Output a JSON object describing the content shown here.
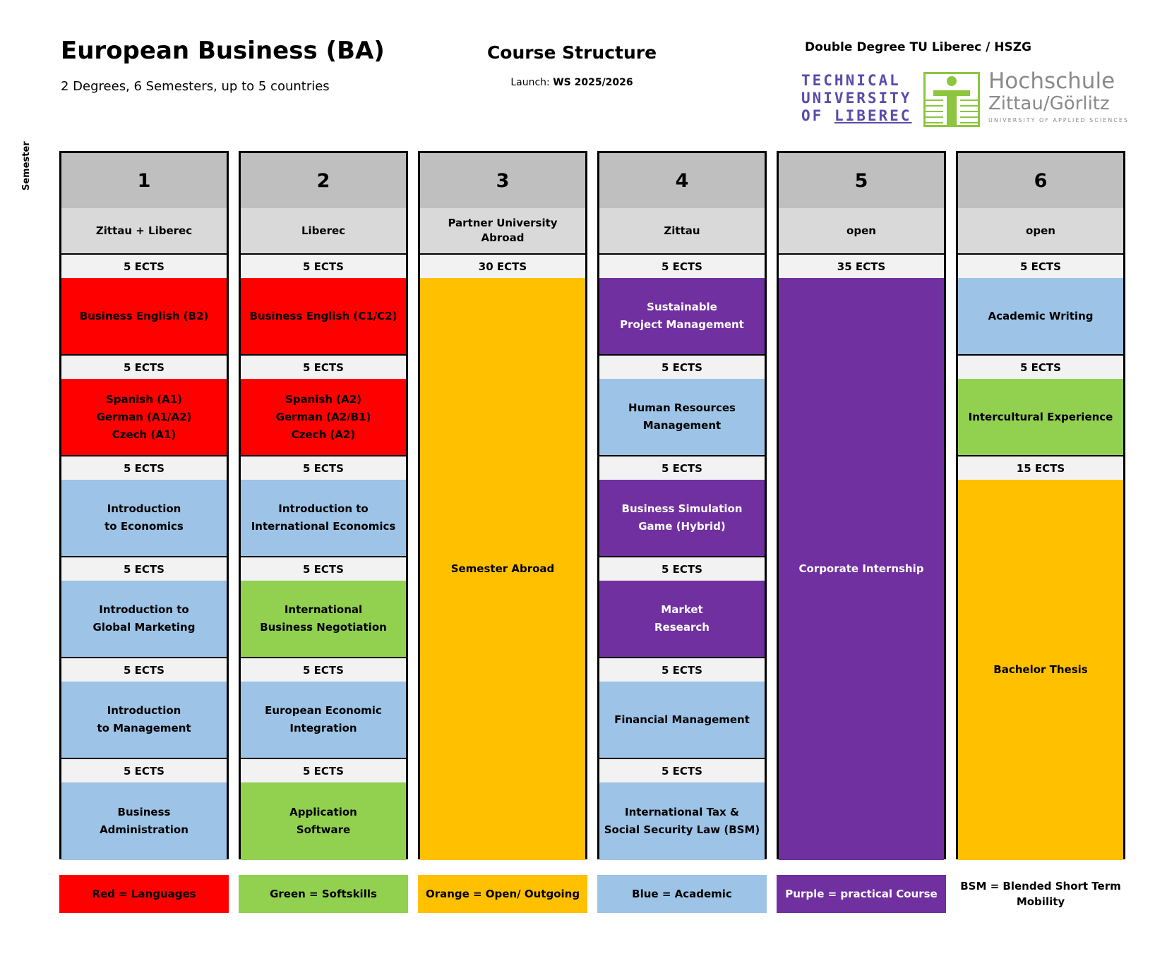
{
  "header": {
    "title": "European Business (BA)",
    "subtitle": "2 Degrees, 6 Semesters, up to 5 countries",
    "center_title": "Course Structure",
    "launch_label": "Launch: ",
    "launch_value": "WS 2025/2026",
    "double_degree": "Double Degree TU Liberec / HSZG",
    "tul_logo": {
      "line1": "TECHNICAL",
      "line2": "UNIVERSITY",
      "line3a": "OF ",
      "line3b": "LIBEREC"
    },
    "hszg_logo": {
      "line1": "Hochschule",
      "line2": "Zittau/Görlitz",
      "line3": "UNIVERSITY OF APPLIED SCIENCES"
    },
    "semester_axis_label": "Semester"
  },
  "colors": {
    "red": "#ff0000",
    "green": "#92d050",
    "orange": "#ffc000",
    "blue": "#9dc3e6",
    "purple": "#7030a0",
    "header_gray": "#bfbfbf"
  },
  "semesters": [
    {
      "number": "1",
      "location": "Zittau + Liberec",
      "modules": [
        {
          "ects": "5 ECTS",
          "name": "Business English (B2)",
          "color": "red"
        },
        {
          "ects": "5 ECTS",
          "name": "Spanish (A1)\nGerman (A1/A2)\nCzech (A1)",
          "color": "red"
        },
        {
          "ects": "5 ECTS",
          "name": "Introduction\nto Economics",
          "color": "blue"
        },
        {
          "ects": "5 ECTS",
          "name": "Introduction to\nGlobal Marketing",
          "color": "blue"
        },
        {
          "ects": "5 ECTS",
          "name": "Introduction\nto Management",
          "color": "blue"
        },
        {
          "ects": "5 ECTS",
          "name": "Business\nAdministration",
          "color": "blue"
        }
      ]
    },
    {
      "number": "2",
      "location": "Liberec",
      "modules": [
        {
          "ects": "5 ECTS",
          "name": "Business English (C1/C2)",
          "color": "red"
        },
        {
          "ects": "5 ECTS",
          "name": "Spanish (A2)\nGerman (A2/B1)\nCzech (A2)",
          "color": "red"
        },
        {
          "ects": "5 ECTS",
          "name": "Introduction to\nInternational Economics",
          "color": "blue"
        },
        {
          "ects": "5 ECTS",
          "name": "International\nBusiness Negotiation",
          "color": "green"
        },
        {
          "ects": "5 ECTS",
          "name": "European Economic\nIntegration",
          "color": "blue"
        },
        {
          "ects": "5 ECTS",
          "name": "Application\nSoftware",
          "color": "green"
        }
      ]
    },
    {
      "number": "3",
      "location": "Partner University\nAbroad",
      "modules": [
        {
          "ects": "30 ECTS",
          "name": "Semester Abroad",
          "color": "orange",
          "span": 6
        }
      ]
    },
    {
      "number": "4",
      "location": "Zittau",
      "modules": [
        {
          "ects": "5 ECTS",
          "name": "Sustainable\nProject Management",
          "color": "purple"
        },
        {
          "ects": "5 ECTS",
          "name": "Human Resources\nManagement",
          "color": "blue"
        },
        {
          "ects": "5 ECTS",
          "name": "Business Simulation\nGame (Hybrid)",
          "color": "purple"
        },
        {
          "ects": "5 ECTS",
          "name": "Market\nResearch",
          "color": "purple"
        },
        {
          "ects": "5 ECTS",
          "name": "Financial Management",
          "color": "blue"
        },
        {
          "ects": "5 ECTS",
          "name": "International Tax &\nSocial Security Law (BSM)",
          "color": "blue"
        }
      ]
    },
    {
      "number": "5",
      "location": "open",
      "modules": [
        {
          "ects": "35 ECTS",
          "name": "Corporate Internship",
          "color": "purple",
          "span": 6
        }
      ]
    },
    {
      "number": "6",
      "location": "open",
      "modules": [
        {
          "ects": "5 ECTS",
          "name": "Academic Writing",
          "color": "blue"
        },
        {
          "ects": "5 ECTS",
          "name": "Intercultural Experience",
          "color": "green"
        },
        {
          "ects": "15 ECTS",
          "name": "Bachelor Thesis",
          "color": "orange",
          "span": 4
        }
      ]
    }
  ],
  "legend": [
    {
      "label": "Red = Languages",
      "color": "red"
    },
    {
      "label": "Green = Softskills",
      "color": "green"
    },
    {
      "label": "Orange = Open/ Outgoing",
      "color": "orange"
    },
    {
      "label": "Blue  = Academic",
      "color": "blue"
    },
    {
      "label": "Purple = practical Course",
      "color": "purple"
    },
    {
      "label": "BSM = Blended Short Term\nMobility",
      "color": "none"
    }
  ]
}
